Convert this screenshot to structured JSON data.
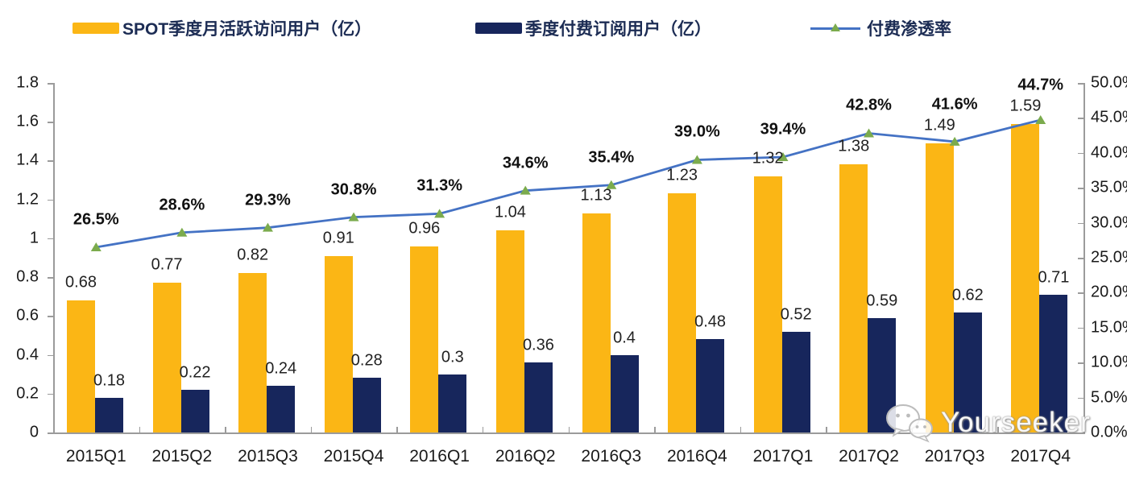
{
  "legend": [
    {
      "label": "SPOT季度月活跃访问用户（亿）",
      "type": "bar",
      "color": "#FBB615"
    },
    {
      "label": "季度付费订阅用户（亿）",
      "type": "bar",
      "color": "#17265C"
    },
    {
      "label": "付费渗透率",
      "type": "line",
      "color": "#4472C4",
      "marker_color": "#7BAB4D"
    }
  ],
  "chart_data": {
    "type": "bar+line",
    "categories": [
      "2015Q1",
      "2015Q2",
      "2015Q3",
      "2015Q4",
      "2016Q1",
      "2016Q2",
      "2016Q3",
      "2016Q4",
      "2017Q1",
      "2017Q2",
      "2017Q3",
      "2017Q4"
    ],
    "series": [
      {
        "name": "SPOT季度月活跃访问用户（亿）",
        "type": "bar",
        "axis": "left",
        "color": "#FBB615",
        "values": [
          0.68,
          0.77,
          0.82,
          0.91,
          0.96,
          1.04,
          1.13,
          1.23,
          1.32,
          1.38,
          1.49,
          1.59
        ],
        "labels": [
          "0.68",
          "0.77",
          "0.82",
          "0.91",
          "0.96",
          "1.04",
          "1.13",
          "1.23",
          "1.32",
          "1.38",
          "1.49",
          "1.59"
        ]
      },
      {
        "name": "季度付费订阅用户（亿）",
        "type": "bar",
        "axis": "left",
        "color": "#17265C",
        "values": [
          0.18,
          0.22,
          0.24,
          0.28,
          0.3,
          0.36,
          0.4,
          0.48,
          0.52,
          0.59,
          0.62,
          0.71
        ],
        "labels": [
          "0.18",
          "0.22",
          "0.24",
          "0.28",
          "0.3",
          "0.36",
          "0.4",
          "0.48",
          "0.52",
          "0.59",
          "0.62",
          "0.71"
        ]
      },
      {
        "name": "付费渗透率",
        "type": "line",
        "axis": "right",
        "color": "#4472C4",
        "marker": "triangle",
        "marker_color": "#7BAB4D",
        "values": [
          26.5,
          28.6,
          29.3,
          30.8,
          31.3,
          34.6,
          35.4,
          39.0,
          39.4,
          42.8,
          41.6,
          44.7
        ],
        "labels": [
          "26.5%",
          "28.6%",
          "29.3%",
          "30.8%",
          "31.3%",
          "34.6%",
          "35.4%",
          "39.0%",
          "39.4%",
          "42.8%",
          "41.6%",
          "44.7%"
        ]
      }
    ],
    "left_axis": {
      "min": 0,
      "max": 1.8,
      "ticks": [
        "0",
        "0.2",
        "0.4",
        "0.6",
        "0.8",
        "1",
        "1.2",
        "1.4",
        "1.6",
        "1.8"
      ]
    },
    "right_axis": {
      "min": 0,
      "max": 50,
      "ticks": [
        "0.0%",
        "5.0%",
        "10.0%",
        "15.0%",
        "20.0%",
        "25.0%",
        "30.0%",
        "35.0%",
        "40.0%",
        "45.0%",
        "50.0%"
      ]
    },
    "grid": false,
    "legend_position": "top"
  },
  "watermark": {
    "text": "Yourseeker",
    "icon": "wechat-icon"
  }
}
